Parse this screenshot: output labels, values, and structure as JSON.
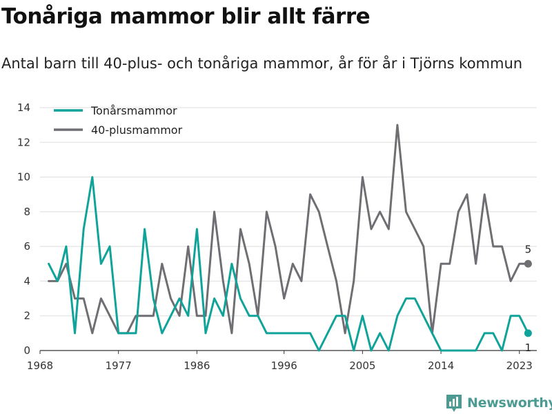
{
  "title": "Tonåriga mammor blir allt färre",
  "subtitle": "Antal barn till 40-plus- och tonåriga mammor, år för år i Tjörns kommun",
  "brand": {
    "name": "Newsworthy",
    "logo_icon": "bar-chart-logo-icon",
    "color": "#4c9b93"
  },
  "chart_data": {
    "type": "line",
    "x": [
      1969,
      1970,
      1971,
      1972,
      1973,
      1974,
      1975,
      1976,
      1977,
      1978,
      1979,
      1980,
      1981,
      1982,
      1983,
      1984,
      1985,
      1986,
      1987,
      1988,
      1989,
      1990,
      1991,
      1992,
      1993,
      1994,
      1995,
      1996,
      1997,
      1998,
      1999,
      2000,
      2001,
      2002,
      2003,
      2004,
      2005,
      2006,
      2007,
      2008,
      2009,
      2010,
      2011,
      2012,
      2013,
      2014,
      2015,
      2016,
      2017,
      2018,
      2019,
      2020,
      2021,
      2022,
      2023,
      2024
    ],
    "series": [
      {
        "name": "Tonårsmammor",
        "color": "#10a39a",
        "values": [
          5,
          4,
          6,
          1,
          7,
          10,
          5,
          6,
          1,
          1,
          1,
          7,
          3,
          1,
          2,
          3,
          2,
          7,
          1,
          3,
          2,
          5,
          3,
          2,
          2,
          1,
          1,
          1,
          1,
          1,
          1,
          0,
          1,
          2,
          2,
          0,
          2,
          0,
          1,
          0,
          2,
          3,
          3,
          2,
          1,
          0,
          0,
          0,
          0,
          0,
          1,
          1,
          0,
          2,
          2,
          1
        ],
        "end_label": "1"
      },
      {
        "name": "40-plusmammor",
        "color": "#6e6e73",
        "values": [
          4,
          4,
          5,
          3,
          3,
          1,
          3,
          2,
          1,
          1,
          2,
          2,
          2,
          5,
          3,
          2,
          6,
          2,
          2,
          8,
          4,
          1,
          7,
          5,
          2,
          8,
          6,
          3,
          5,
          4,
          9,
          8,
          6,
          4,
          1,
          4,
          10,
          7,
          8,
          7,
          13,
          8,
          7,
          6,
          1,
          5,
          5,
          8,
          9,
          5,
          9,
          6,
          6,
          4,
          5,
          5
        ],
        "end_label": "5"
      }
    ],
    "xticks": [
      "1968",
      "1977",
      "1986",
      "1996",
      "2005",
      "2014",
      "2023"
    ],
    "yticks": [
      "0",
      "2",
      "4",
      "6",
      "8",
      "10",
      "12",
      "14"
    ],
    "xlim": [
      1968,
      2025
    ],
    "ylim": [
      0,
      14
    ],
    "grid": true,
    "legend": "top-left"
  }
}
